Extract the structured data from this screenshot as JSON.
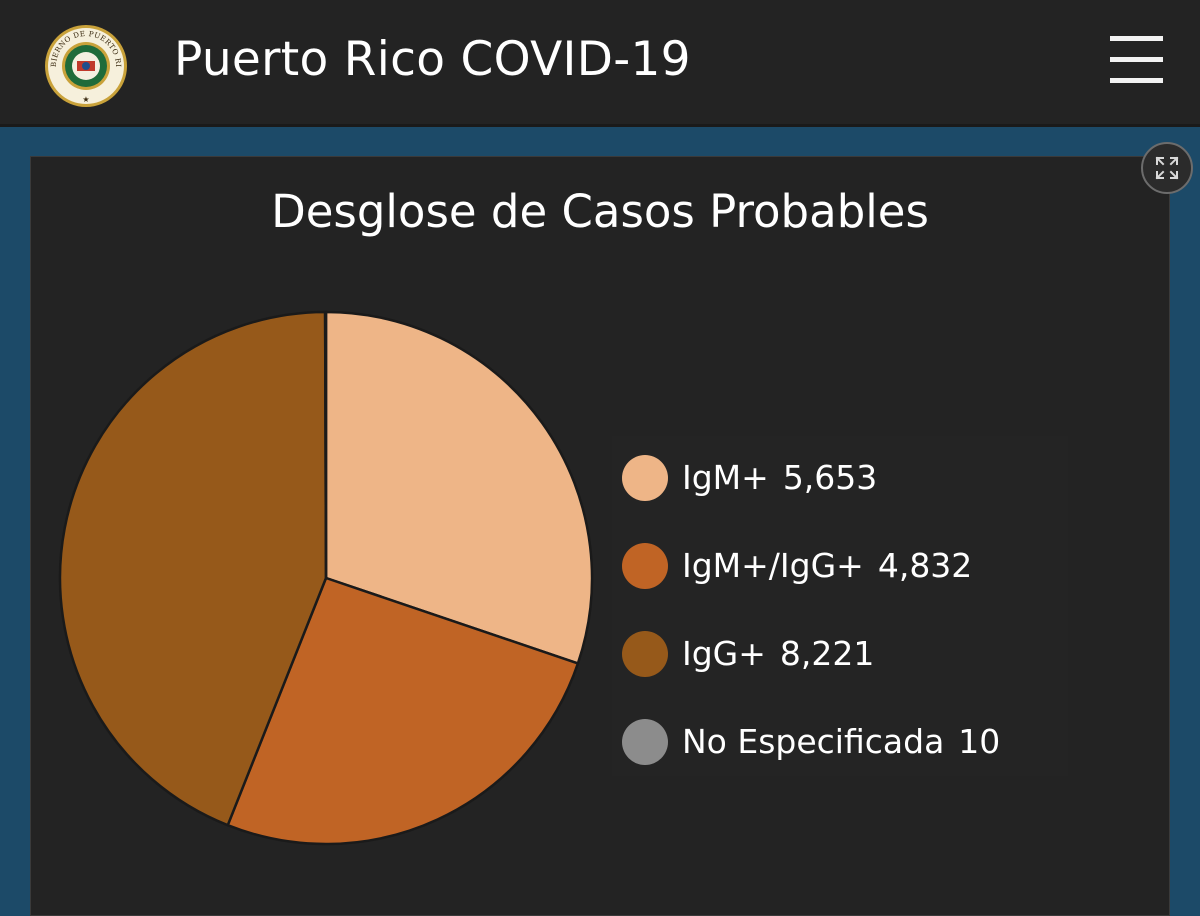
{
  "header": {
    "title": "Puerto Rico COVID-19",
    "logo_text": "GOBIERNO DE PUERTO RICO",
    "menu_icon": "hamburger-menu-icon"
  },
  "panel": {
    "expand_icon": "expand-icon"
  },
  "colors": {
    "header_bg": "#232323",
    "page_bg": "#1c4a68",
    "panel_bg": "#232323"
  },
  "chart_data": {
    "type": "pie",
    "title": "Desglose de Casos Probables",
    "legend_position": "right",
    "slices": [
      {
        "label": "IgM+",
        "value": 5653,
        "display_value": "5,653",
        "color": "#eeb587"
      },
      {
        "label": "IgM+/IgG+",
        "value": 4832,
        "display_value": "4,832",
        "color": "#c06425"
      },
      {
        "label": "IgG+",
        "value": 8221,
        "display_value": "8,221",
        "color": "#96591a"
      },
      {
        "label": "No Especificada",
        "value": 10,
        "display_value": "10",
        "color": "#8c8c8c"
      }
    ]
  }
}
